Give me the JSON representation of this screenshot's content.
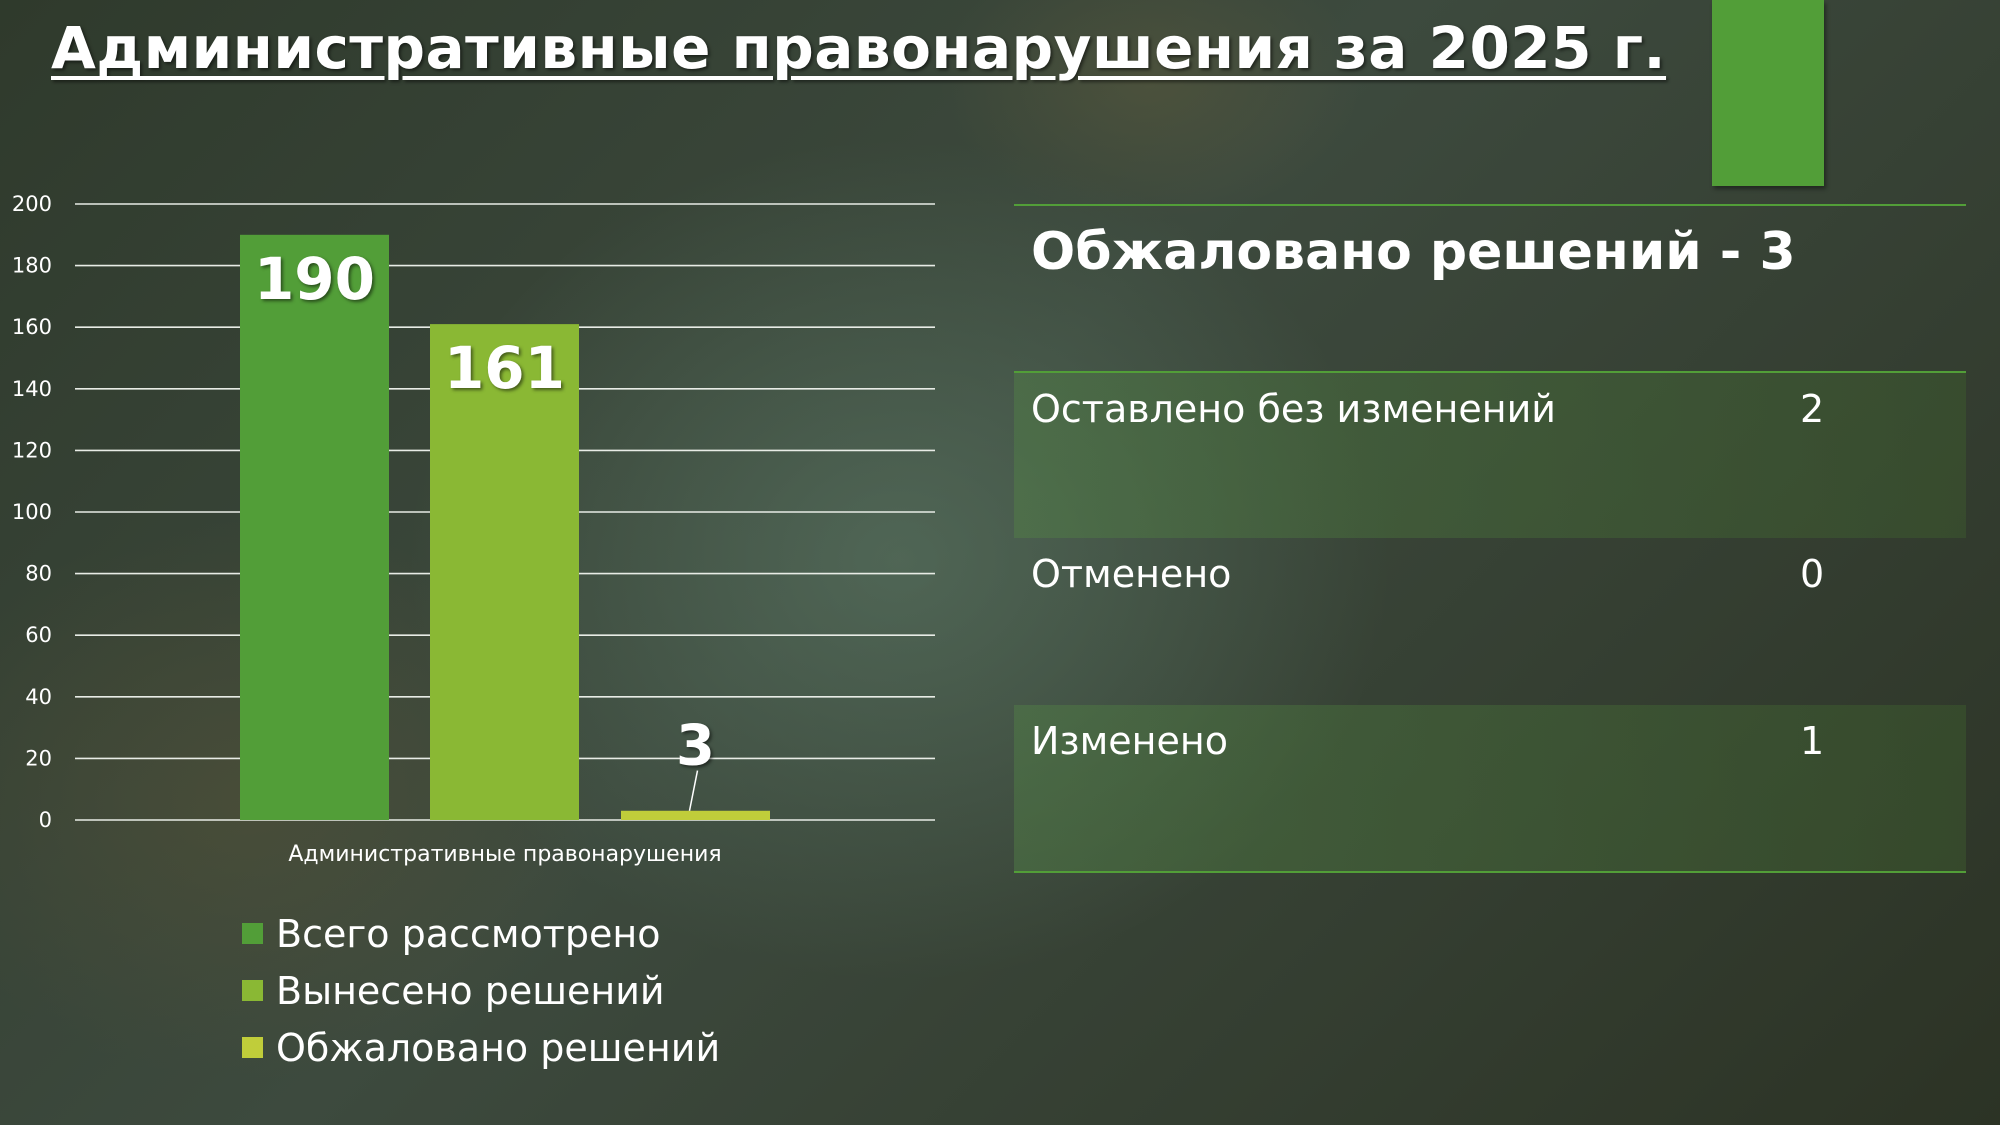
{
  "title": "Административные правонарушения за 2025 г.",
  "colors": {
    "accent": "#529e38",
    "series": [
      "#529e38",
      "#8ab834",
      "#c0cd3a"
    ]
  },
  "chart_data": {
    "type": "bar",
    "categories": [
      "Административные правонарушения"
    ],
    "series": [
      {
        "name": "Всего рассмотрено",
        "values": [
          190
        ]
      },
      {
        "name": "Вынесено решений",
        "values": [
          161
        ]
      },
      {
        "name": "Обжаловано решений",
        "values": [
          3
        ]
      }
    ],
    "data_labels": [
      "190",
      "161",
      "3"
    ],
    "ylim": [
      0,
      200
    ],
    "yticks": [
      "0",
      "20",
      "40",
      "60",
      "80",
      "100",
      "120",
      "140",
      "160",
      "180",
      "200"
    ],
    "grid": true,
    "legend": "bottom"
  },
  "panel": {
    "heading": "Обжаловано решений - 3",
    "rows": [
      {
        "label": "Оставлено без изменений",
        "value": "2"
      },
      {
        "label": "Отменено",
        "value": "0"
      },
      {
        "label": "Изменено",
        "value": "1"
      }
    ]
  }
}
